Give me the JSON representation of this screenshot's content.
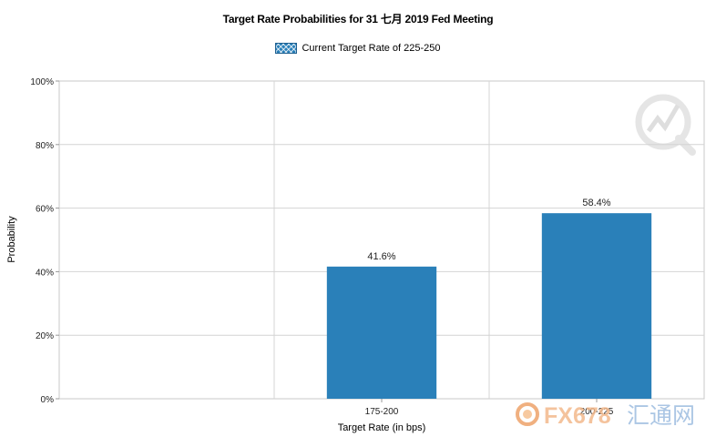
{
  "chart_data": {
    "type": "bar",
    "title": "Target Rate Probabilities for 31 七月 2019  Fed Meeting",
    "legend": [
      "Current Target Rate of 225-250"
    ],
    "legend_position": "top-center",
    "categories": [
      "175-200",
      "200-225"
    ],
    "series": [
      {
        "name": "Current Target Rate of 225-250",
        "values": [
          41.6,
          58.4
        ]
      }
    ],
    "data_labels": [
      "41.6%",
      "58.4%"
    ],
    "xlabel": "Target Rate (in bps)",
    "ylabel": "Probability",
    "ylim": [
      0,
      100
    ],
    "yticks": [
      "0%",
      "20%",
      "40%",
      "60%",
      "80%",
      "100%"
    ],
    "grid": true,
    "bar_color": "#2a80b9"
  },
  "watermark": {
    "text_fx": "FX678",
    "text_cn": "汇通网"
  }
}
